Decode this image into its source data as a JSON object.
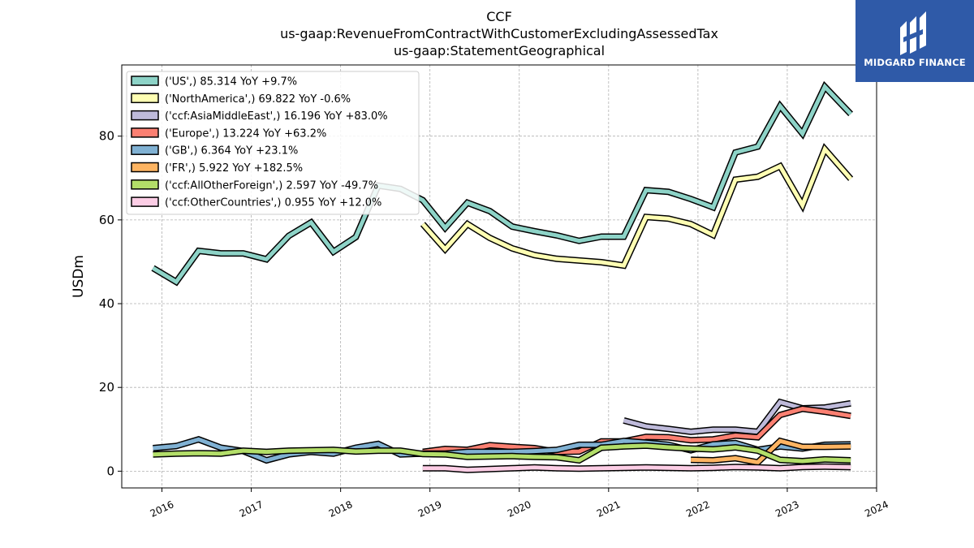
{
  "title_lines": [
    "CCF",
    "us-gaap:RevenueFromContractWithCustomerExcludingAssessedTax",
    "us-gaap:StatementGeographical"
  ],
  "logo": {
    "text": "MIDGARD FINANCE",
    "background": "#2f5aa8"
  },
  "chart_data": {
    "type": "line",
    "title": "CCF",
    "subtitle": "us-gaap:RevenueFromContractWithCustomerExcludingAssessedTax us-gaap:StatementGeographical",
    "xlabel": "",
    "ylabel": "USDm",
    "xlim": [
      2015.55,
      2024.0
    ],
    "ylim": [
      -4,
      97
    ],
    "x_ticks": [
      2016,
      2017,
      2018,
      2019,
      2020,
      2021,
      2022,
      2023,
      2024
    ],
    "y_ticks": [
      0,
      20,
      40,
      60,
      80
    ],
    "grid": true,
    "legend_position": "top-left",
    "series": [
      {
        "name": "('US',) 85.314 YoY +9.7%",
        "color": "#8dd3c7",
        "x": [
          2015.9,
          2016.16,
          2016.41,
          2016.66,
          2016.91,
          2017.17,
          2017.42,
          2017.67,
          2017.92,
          2018.17,
          2018.42,
          2018.67,
          2018.92,
          2019.17,
          2019.42,
          2019.67,
          2019.92,
          2020.17,
          2020.42,
          2020.67,
          2020.92,
          2021.17,
          2021.42,
          2021.67,
          2021.92,
          2022.17,
          2022.42,
          2022.67,
          2022.92,
          2023.17,
          2023.42,
          2023.71
        ],
        "y": [
          48.5,
          45.2,
          52.6,
          52,
          52,
          50.6,
          56.2,
          59.4,
          52.4,
          55.9,
          68.2,
          67.4,
          64.7,
          58.1,
          64.1,
          62.1,
          58.4,
          57.3,
          56.3,
          55,
          56,
          56,
          67.1,
          66.7,
          65,
          63,
          76.1,
          77.5,
          87.2,
          80.6,
          91.8,
          85.3
        ]
      },
      {
        "name": "('NorthAmerica',) 69.822 YoY -0.6%",
        "color": "#ffffb3",
        "x": [
          2018.92,
          2019.17,
          2019.42,
          2019.67,
          2019.92,
          2020.17,
          2020.42,
          2020.67,
          2020.92,
          2021.17,
          2021.42,
          2021.67,
          2021.92,
          2022.17,
          2022.42,
          2022.67,
          2022.92,
          2023.17,
          2023.42,
          2023.71
        ],
        "y": [
          59,
          53,
          59,
          55.7,
          53.2,
          51.6,
          50.7,
          50.3,
          49.9,
          49.1,
          60.7,
          60.3,
          59,
          56.4,
          69.6,
          70.3,
          72.8,
          63.5,
          76.9,
          69.8
        ]
      },
      {
        "name": "('ccf:AsiaMiddleEast',) 16.196 YoY +83.0%",
        "color": "#bebada",
        "x": [
          2021.17,
          2021.42,
          2021.67,
          2021.92,
          2022.17,
          2022.42,
          2022.67,
          2022.92,
          2023.17,
          2023.42,
          2023.71
        ],
        "y": [
          12.1,
          10.7,
          10.1,
          9.4,
          9.9,
          9.9,
          9.4,
          16.5,
          15,
          15.2,
          16.2
        ]
      },
      {
        "name": "('Europe',) 13.224 YoY +63.2%",
        "color": "#fb8072",
        "x": [
          2018.92,
          2019.17,
          2019.42,
          2019.67,
          2019.92,
          2020.17,
          2020.42,
          2020.67,
          2020.92,
          2021.17,
          2021.42,
          2021.67,
          2021.92,
          2022.17,
          2022.42,
          2022.67,
          2022.92,
          2023.17,
          2023.42,
          2023.71
        ],
        "y": [
          4.6,
          5.3,
          5.1,
          6.2,
          5.8,
          5.5,
          4.6,
          4.7,
          7.1,
          7.1,
          8.2,
          8.1,
          7.4,
          7.6,
          8.5,
          8.1,
          13.4,
          14.9,
          14.2,
          13.2
        ]
      },
      {
        "name": "('GB',) 6.364 YoY +23.1%",
        "color": "#80b1d3",
        "x": [
          2015.9,
          2016.16,
          2016.41,
          2016.66,
          2016.91,
          2017.17,
          2017.42,
          2017.67,
          2017.92,
          2018.17,
          2018.42,
          2018.67,
          2018.92,
          2019.17,
          2019.42,
          2019.67,
          2019.92,
          2020.17,
          2020.42,
          2020.67,
          2020.92,
          2021.17,
          2021.42,
          2021.67,
          2021.92,
          2022.17,
          2022.42,
          2022.67,
          2022.92,
          2023.17,
          2023.42,
          2023.71
        ],
        "y": [
          5.5,
          6,
          7.6,
          5.6,
          4.8,
          2.6,
          4,
          4.6,
          4.2,
          5.6,
          6.5,
          4,
          4.2,
          4.2,
          4.6,
          4.6,
          4.6,
          4.8,
          5.1,
          6.3,
          6.3,
          7.2,
          6.8,
          6.3,
          5,
          6.4,
          6.7,
          5.1,
          5.9,
          5.4,
          6.3,
          6.4
        ]
      },
      {
        "name": "('FR',) 5.922 YoY +182.5%",
        "color": "#fdb462",
        "x": [
          2021.92,
          2022.17,
          2022.42,
          2022.67,
          2022.92,
          2023.17,
          2023.42,
          2023.71
        ],
        "y": [
          2.7,
          2.6,
          3.1,
          2.1,
          7.2,
          5.8,
          5.8,
          5.9
        ]
      },
      {
        "name": "('ccf:AllOtherForeign',) 2.597 YoY -49.7%",
        "color": "#b3de69",
        "x": [
          2015.9,
          2016.16,
          2016.41,
          2016.66,
          2016.91,
          2017.17,
          2017.42,
          2017.67,
          2017.92,
          2018.17,
          2018.42,
          2018.67,
          2018.92,
          2019.17,
          2019.42,
          2019.67,
          2019.92,
          2020.17,
          2020.42,
          2020.67,
          2020.92,
          2021.17,
          2021.42,
          2021.67,
          2021.92,
          2022.17,
          2022.42,
          2022.67,
          2022.92,
          2023.17,
          2023.42,
          2023.71
        ],
        "y": [
          4,
          4.2,
          4.3,
          4.2,
          4.9,
          4.6,
          4.9,
          5,
          5.1,
          4.7,
          4.9,
          4.9,
          4.1,
          4,
          3.4,
          3.5,
          3.6,
          3.4,
          3.3,
          2.6,
          5.6,
          5.9,
          6.1,
          5.7,
          5.4,
          5.2,
          5.7,
          4.9,
          2.7,
          2.4,
          2.8,
          2.6
        ]
      },
      {
        "name": "('ccf:OtherCountries',) 0.955 YoY +12.0%",
        "color": "#fccde5",
        "x": [
          2018.92,
          2019.17,
          2019.42,
          2019.67,
          2019.92,
          2020.17,
          2020.42,
          2020.67,
          2020.92,
          2021.17,
          2021.42,
          2021.67,
          2021.92,
          2022.17,
          2022.42,
          2022.67,
          2022.92,
          2023.17,
          2023.42,
          2023.71
        ],
        "y": [
          0.7,
          0.7,
          0.3,
          0.5,
          0.7,
          0.9,
          0.7,
          0.6,
          0.7,
          0.8,
          0.9,
          0.8,
          0.7,
          0.8,
          1,
          0.9,
          0.7,
          1,
          1.1,
          0.96
        ]
      }
    ]
  }
}
